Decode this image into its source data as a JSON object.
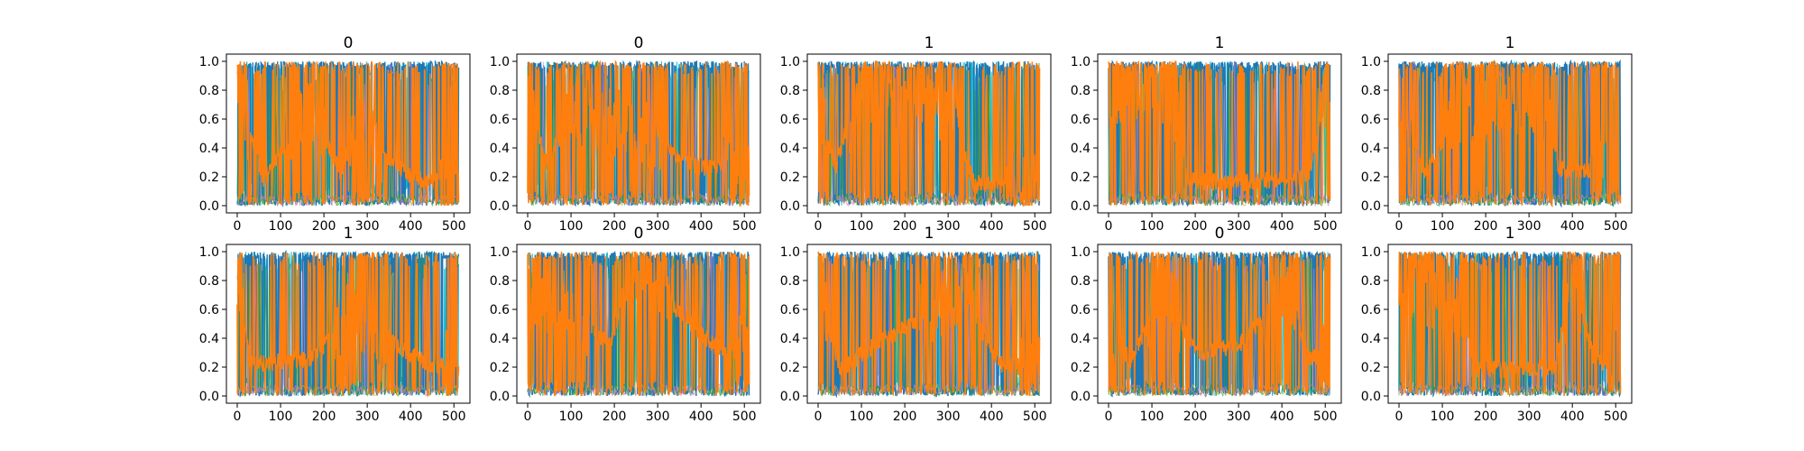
{
  "chart_data": {
    "type": "line",
    "layout": "2x5 grid of subplots",
    "x_ticks": [
      0,
      100,
      200,
      300,
      400,
      500
    ],
    "y_ticks": [
      0.0,
      0.2,
      0.4,
      0.6,
      0.8,
      1.0
    ],
    "y_tick_labels": [
      "0.0",
      "0.2",
      "0.4",
      "0.6",
      "0.8",
      "1.0"
    ],
    "xlim": [
      -25,
      537
    ],
    "ylim": [
      -0.05,
      1.05
    ],
    "n_points": 512,
    "grid": false,
    "legend": "none",
    "series_colors": [
      "#1f77b4",
      "#17becf",
      "#bcbd22",
      "#2ca02c",
      "#e377c2",
      "#ff7f0e"
    ],
    "panels": [
      {
        "title": "0",
        "orange_segments": [
          [
            0,
            0.82,
            0
          ],
          [
            60,
            0.18,
            1
          ],
          [
            170,
            0.7,
            0
          ],
          [
            240,
            0.22,
            1
          ],
          [
            270,
            0.55,
            0
          ],
          [
            400,
            0.2,
            1
          ],
          [
            512,
            0.12,
            0
          ]
        ]
      },
      {
        "title": "0",
        "orange_segments": [
          [
            0,
            0.85,
            0
          ],
          [
            40,
            0.3,
            1
          ],
          [
            110,
            0.65,
            0
          ],
          [
            240,
            0.55,
            0
          ],
          [
            380,
            0.28,
            1
          ],
          [
            512,
            0.22,
            0
          ]
        ]
      },
      {
        "title": "1",
        "orange_segments": [
          [
            0,
            0.75,
            0
          ],
          [
            40,
            0.25,
            1
          ],
          [
            90,
            0.8,
            0
          ],
          [
            310,
            0.65,
            0
          ],
          [
            360,
            0.15,
            1
          ],
          [
            512,
            0.12,
            0
          ]
        ]
      },
      {
        "title": "1",
        "orange_segments": [
          [
            0,
            0.8,
            0
          ],
          [
            150,
            0.75,
            0
          ],
          [
            180,
            0.18,
            1
          ],
          [
            280,
            0.15,
            1
          ],
          [
            460,
            0.2,
            1
          ],
          [
            512,
            0.85,
            0
          ]
        ]
      },
      {
        "title": "1",
        "orange_segments": [
          [
            0,
            0.75,
            0
          ],
          [
            60,
            0.22,
            1
          ],
          [
            140,
            0.65,
            0
          ],
          [
            330,
            0.75,
            0
          ],
          [
            370,
            0.25,
            1
          ],
          [
            512,
            0.25,
            0
          ]
        ]
      },
      {
        "title": "1",
        "orange_segments": [
          [
            0,
            0.85,
            0
          ],
          [
            30,
            0.22,
            1
          ],
          [
            170,
            0.25,
            1
          ],
          [
            260,
            0.55,
            0
          ],
          [
            440,
            0.22,
            1
          ],
          [
            512,
            0.2,
            0
          ]
        ]
      },
      {
        "title": "0",
        "orange_segments": [
          [
            0,
            0.7,
            0
          ],
          [
            100,
            0.6,
            0
          ],
          [
            190,
            0.35,
            1
          ],
          [
            240,
            0.9,
            0
          ],
          [
            430,
            0.35,
            1
          ],
          [
            512,
            0.3,
            0
          ]
        ]
      },
      {
        "title": "1",
        "orange_segments": [
          [
            0,
            0.8,
            0
          ],
          [
            50,
            0.18,
            1
          ],
          [
            130,
            0.35,
            1
          ],
          [
            330,
            0.7,
            0
          ],
          [
            420,
            0.22,
            1
          ],
          [
            512,
            0.18,
            0
          ]
        ]
      },
      {
        "title": "0",
        "orange_segments": [
          [
            0,
            0.6,
            0
          ],
          [
            50,
            0.22,
            1
          ],
          [
            130,
            0.75,
            0
          ],
          [
            200,
            0.3,
            1
          ],
          [
            300,
            0.35,
            1
          ],
          [
            420,
            0.75,
            0
          ],
          [
            460,
            0.25,
            1
          ],
          [
            512,
            0.3,
            0
          ]
        ]
      },
      {
        "title": "1",
        "orange_segments": [
          [
            0,
            0.8,
            0
          ],
          [
            130,
            0.65,
            0
          ],
          [
            180,
            0.18,
            1
          ],
          [
            360,
            0.2,
            1
          ],
          [
            400,
            0.85,
            0
          ],
          [
            450,
            0.25,
            1
          ],
          [
            512,
            0.22,
            0
          ]
        ]
      }
    ]
  }
}
